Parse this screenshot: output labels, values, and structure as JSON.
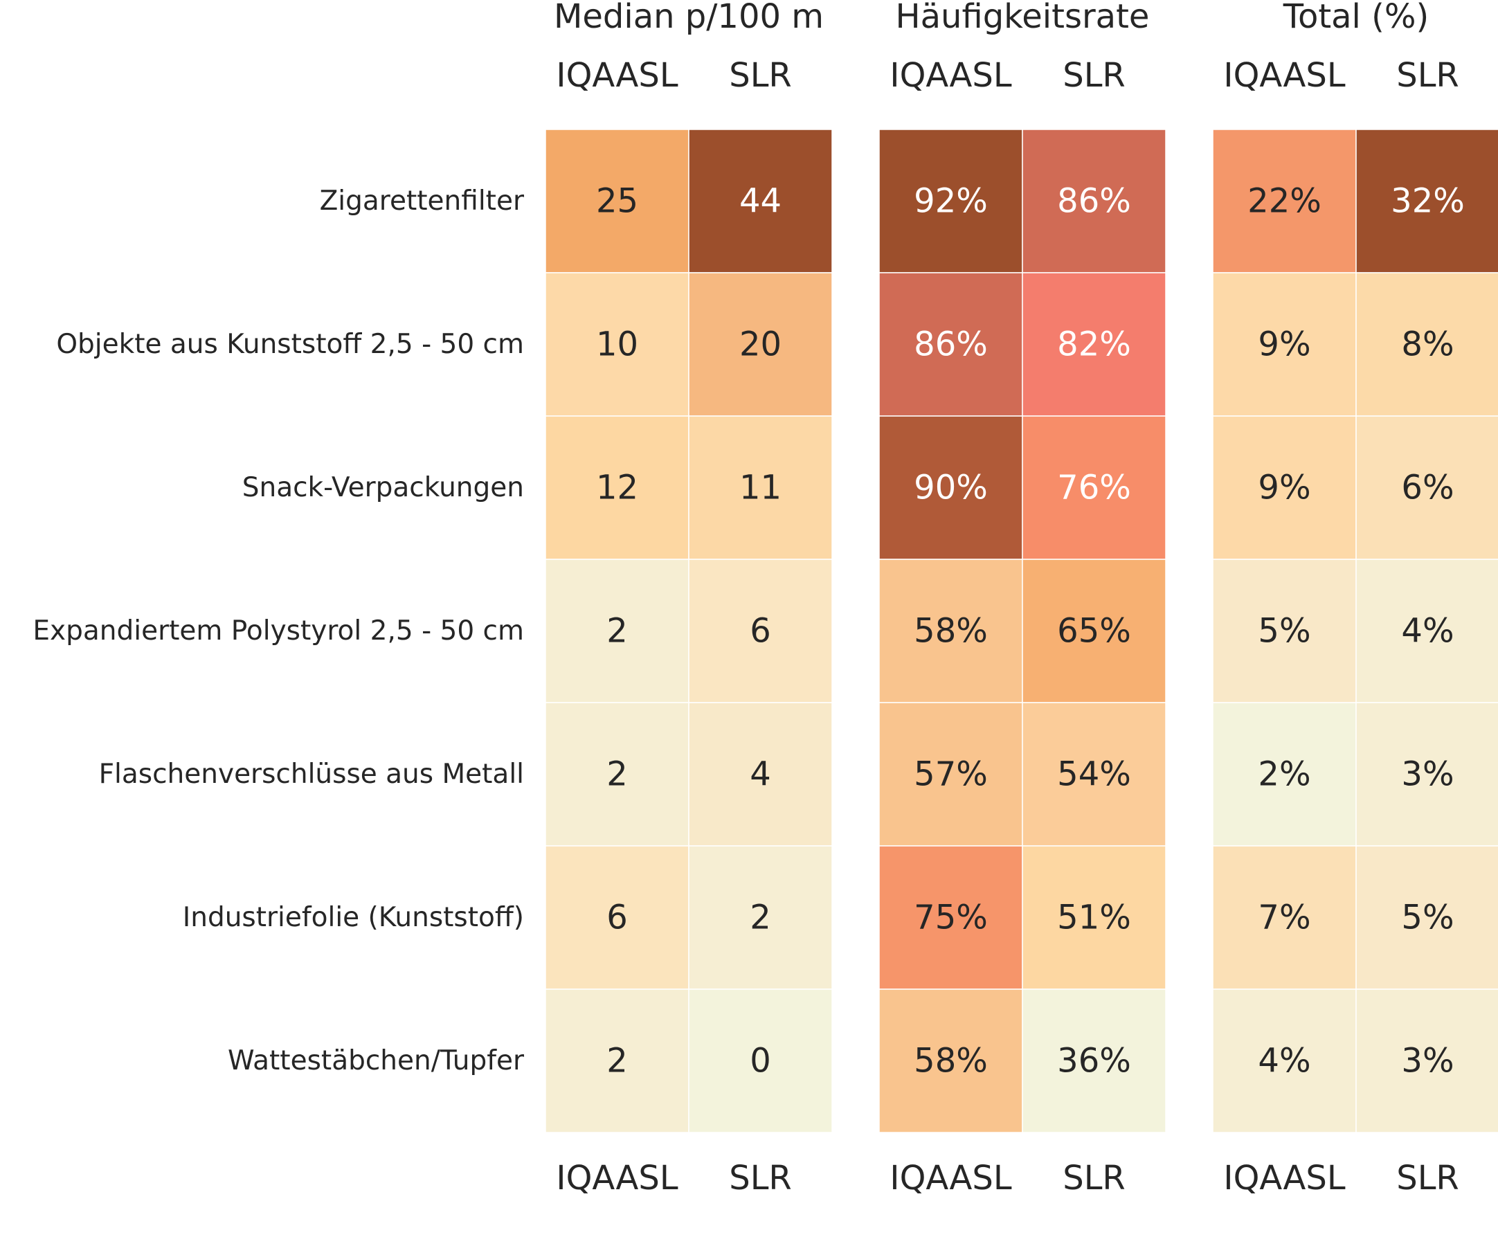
{
  "chart_data": {
    "type": "heatmap",
    "rows": [
      "Zigarettenfilter",
      "Objekte aus Kunststoff 2,5 - 50 cm",
      "Snack-Verpackungen",
      "Expandiertem Polystyrol 2,5 - 50 cm",
      "Flaschenverschlüsse aus Metall",
      "Industriefolie (Kunststoff)",
      "Wattestäbchen/Tupfer"
    ],
    "panels": [
      {
        "title": "Median p/100 m",
        "columns": [
          "IQAASL",
          "SLR"
        ],
        "suffix": "",
        "values": [
          [
            25,
            44
          ],
          [
            10,
            20
          ],
          [
            12,
            11
          ],
          [
            2,
            6
          ],
          [
            2,
            4
          ],
          [
            6,
            2
          ],
          [
            2,
            0
          ]
        ],
        "labels": [
          [
            "25",
            "44"
          ],
          [
            "10",
            "20"
          ],
          [
            "12",
            "11"
          ],
          [
            "2",
            "6"
          ],
          [
            "2",
            "4"
          ],
          [
            "6",
            "2"
          ],
          [
            "2",
            "0"
          ]
        ],
        "colors": [
          [
            "#f3a968",
            "#9c4f2c"
          ],
          [
            "#fdd9a8",
            "#f6b880"
          ],
          [
            "#fdd7a2",
            "#fcd8a6"
          ],
          [
            "#f6eed3",
            "#fae6c2"
          ],
          [
            "#f6eed3",
            "#f8e9c9"
          ],
          [
            "#fbe4bd",
            "#f6eed3"
          ],
          [
            "#f6eed3",
            "#f3f3dc"
          ]
        ],
        "text_colors": [
          [
            "#262626",
            "#ffffff"
          ],
          [
            "#262626",
            "#262626"
          ],
          [
            "#262626",
            "#262626"
          ],
          [
            "#262626",
            "#262626"
          ],
          [
            "#262626",
            "#262626"
          ],
          [
            "#262626",
            "#262626"
          ],
          [
            "#262626",
            "#262626"
          ]
        ]
      },
      {
        "title": "Häufigkeitsrate",
        "columns": [
          "IQAASL",
          "SLR"
        ],
        "suffix": "%",
        "values": [
          [
            92,
            86
          ],
          [
            86,
            82
          ],
          [
            90,
            76
          ],
          [
            58,
            65
          ],
          [
            57,
            54
          ],
          [
            75,
            51
          ],
          [
            58,
            36
          ]
        ],
        "labels": [
          [
            "92%",
            "86%"
          ],
          [
            "86%",
            "82%"
          ],
          [
            "90%",
            "76%"
          ],
          [
            "58%",
            "65%"
          ],
          [
            "57%",
            "54%"
          ],
          [
            "75%",
            "51%"
          ],
          [
            "58%",
            "36%"
          ]
        ],
        "colors": [
          [
            "#9c4f2c",
            "#d06b55"
          ],
          [
            "#d06b55",
            "#f47d6d"
          ],
          [
            "#b05a38",
            "#f78d69"
          ],
          [
            "#f9c48e",
            "#f7b072"
          ],
          [
            "#f9c48e",
            "#fbcc99"
          ],
          [
            "#f6956a",
            "#fdd7a2"
          ],
          [
            "#f9c48e",
            "#f3f3dc"
          ]
        ],
        "text_colors": [
          [
            "#ffffff",
            "#ffffff"
          ],
          [
            "#ffffff",
            "#ffffff"
          ],
          [
            "#ffffff",
            "#ffffff"
          ],
          [
            "#262626",
            "#262626"
          ],
          [
            "#262626",
            "#262626"
          ],
          [
            "#262626",
            "#262626"
          ],
          [
            "#262626",
            "#262626"
          ]
        ]
      },
      {
        "title": "Total (%)",
        "columns": [
          "IQAASL",
          "SLR"
        ],
        "suffix": "%",
        "values": [
          [
            22,
            32
          ],
          [
            9,
            8
          ],
          [
            9,
            6
          ],
          [
            5,
            4
          ],
          [
            2,
            3
          ],
          [
            7,
            5
          ],
          [
            4,
            3
          ]
        ],
        "labels": [
          [
            "22%",
            "32%"
          ],
          [
            "9%",
            "8%"
          ],
          [
            "9%",
            "6%"
          ],
          [
            "5%",
            "4%"
          ],
          [
            "2%",
            "3%"
          ],
          [
            "7%",
            "5%"
          ],
          [
            "4%",
            "3%"
          ]
        ],
        "colors": [
          [
            "#f4976a",
            "#9c4f2c"
          ],
          [
            "#fdd9a8",
            "#fcdaa9"
          ],
          [
            "#fdd9a8",
            "#fbe0b6"
          ],
          [
            "#f9e8c8",
            "#f6eed3"
          ],
          [
            "#f3f3dc",
            "#f6eed3"
          ],
          [
            "#fbe0b6",
            "#f9e8c8"
          ],
          [
            "#f6eed3",
            "#f6eed3"
          ]
        ],
        "text_colors": [
          [
            "#262626",
            "#ffffff"
          ],
          [
            "#262626",
            "#262626"
          ],
          [
            "#262626",
            "#262626"
          ],
          [
            "#262626",
            "#262626"
          ],
          [
            "#262626",
            "#262626"
          ],
          [
            "#262626",
            "#262626"
          ],
          [
            "#262626",
            "#262626"
          ]
        ]
      }
    ],
    "grid": false,
    "legend": "none",
    "text_color": "#262626"
  }
}
